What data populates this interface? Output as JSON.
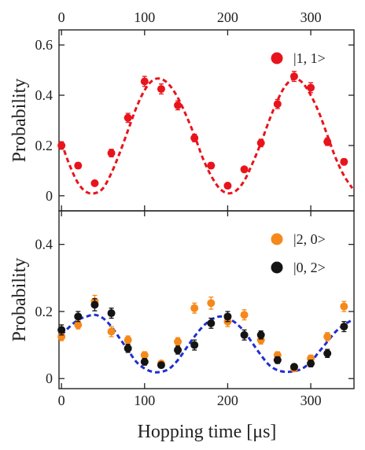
{
  "chart_data": [
    {
      "type": "scatter",
      "ylabel": "Probability",
      "xlim": [
        -3,
        352
      ],
      "ylim": [
        -0.06,
        0.66
      ],
      "yticks": [
        0,
        0.2,
        0.4,
        0.6
      ],
      "ytick_labels": [
        "0",
        "0.2",
        "0.4",
        "0.6"
      ],
      "xticks": [
        0,
        100,
        200,
        300
      ],
      "xtick_labels": [
        "0",
        "100",
        "200",
        "300"
      ],
      "xticks_position": "top",
      "legend_position": "top-right",
      "series": [
        {
          "name": "|1, 1>",
          "color": "#e8141c",
          "x": [
            0,
            20,
            40,
            60,
            80,
            100,
            120,
            140,
            160,
            180,
            200,
            220,
            240,
            260,
            280,
            300,
            320,
            340
          ],
          "y": [
            0.2,
            0.12,
            0.05,
            0.17,
            0.31,
            0.455,
            0.425,
            0.36,
            0.23,
            0.12,
            0.04,
            0.105,
            0.21,
            0.365,
            0.475,
            0.43,
            0.215,
            0.135
          ],
          "yerr": [
            0.015,
            0.012,
            0.01,
            0.015,
            0.018,
            0.02,
            0.02,
            0.018,
            0.015,
            0.012,
            0.008,
            0.01,
            0.015,
            0.018,
            0.02,
            0.02,
            0.015,
            0.012
          ]
        }
      ],
      "fit": {
        "color": "#e8141c",
        "style": "dashed",
        "x": [
          0,
          10,
          20,
          30,
          40,
          50,
          60,
          70,
          80,
          90,
          100,
          110,
          120,
          130,
          140,
          150,
          160,
          170,
          180,
          190,
          200,
          210,
          220,
          230,
          240,
          250,
          260,
          270,
          280,
          290,
          300,
          310,
          320,
          330,
          340,
          350
        ],
        "y": [
          0.21,
          0.12,
          0.05,
          0.015,
          0.01,
          0.03,
          0.09,
          0.17,
          0.26,
          0.35,
          0.42,
          0.46,
          0.465,
          0.44,
          0.39,
          0.32,
          0.24,
          0.15,
          0.08,
          0.03,
          0.01,
          0.02,
          0.06,
          0.13,
          0.21,
          0.3,
          0.38,
          0.44,
          0.465,
          0.45,
          0.4,
          0.33,
          0.24,
          0.15,
          0.08,
          0.03
        ]
      }
    },
    {
      "type": "scatter",
      "xlabel": "Hopping time [μs]",
      "ylabel": "Probability",
      "xlim": [
        -3,
        352
      ],
      "ylim": [
        -0.03,
        0.5
      ],
      "yticks": [
        0,
        0.2,
        0.4
      ],
      "ytick_labels": [
        "0",
        "0.2",
        "0.4"
      ],
      "xticks": [
        0,
        100,
        200,
        300
      ],
      "xtick_labels": [
        "0",
        "100",
        "200",
        "300"
      ],
      "legend_position": "top-right",
      "series": [
        {
          "name": "|2, 0>",
          "color": "#f5891a",
          "x": [
            0,
            20,
            40,
            60,
            80,
            100,
            120,
            140,
            160,
            180,
            200,
            220,
            240,
            260,
            280,
            300,
            320,
            340
          ],
          "y": [
            0.125,
            0.16,
            0.23,
            0.14,
            0.115,
            0.07,
            0.045,
            0.11,
            0.21,
            0.225,
            0.17,
            0.19,
            0.115,
            0.07,
            0.03,
            0.06,
            0.125,
            0.215
          ],
          "yerr": [
            0.012,
            0.012,
            0.018,
            0.015,
            0.012,
            0.01,
            0.008,
            0.012,
            0.015,
            0.018,
            0.015,
            0.015,
            0.012,
            0.01,
            0.008,
            0.01,
            0.012,
            0.015
          ]
        },
        {
          "name": "|0, 2>",
          "color": "#141414",
          "x": [
            0,
            20,
            40,
            60,
            80,
            100,
            120,
            140,
            160,
            180,
            200,
            220,
            240,
            260,
            280,
            300,
            320,
            340
          ],
          "y": [
            0.145,
            0.185,
            0.22,
            0.195,
            0.09,
            0.05,
            0.04,
            0.085,
            0.1,
            0.165,
            0.185,
            0.13,
            0.13,
            0.055,
            0.035,
            0.045,
            0.075,
            0.155
          ],
          "yerr": [
            0.015,
            0.015,
            0.018,
            0.015,
            0.012,
            0.01,
            0.008,
            0.012,
            0.015,
            0.015,
            0.015,
            0.015,
            0.012,
            0.01,
            0.008,
            0.01,
            0.012,
            0.015
          ]
        }
      ],
      "fit": {
        "color": "#1f2fd1",
        "style": "dashed",
        "x": [
          0,
          10,
          20,
          30,
          40,
          50,
          60,
          70,
          80,
          90,
          100,
          110,
          120,
          130,
          140,
          150,
          160,
          170,
          180,
          190,
          200,
          210,
          220,
          230,
          240,
          250,
          260,
          270,
          280,
          290,
          300,
          310,
          320,
          330,
          340,
          350
        ],
        "y": [
          0.13,
          0.155,
          0.175,
          0.185,
          0.19,
          0.18,
          0.155,
          0.12,
          0.085,
          0.05,
          0.03,
          0.02,
          0.02,
          0.03,
          0.055,
          0.09,
          0.125,
          0.155,
          0.175,
          0.185,
          0.18,
          0.165,
          0.14,
          0.105,
          0.07,
          0.04,
          0.025,
          0.02,
          0.022,
          0.03,
          0.05,
          0.08,
          0.11,
          0.14,
          0.16,
          0.175
        ]
      }
    }
  ]
}
